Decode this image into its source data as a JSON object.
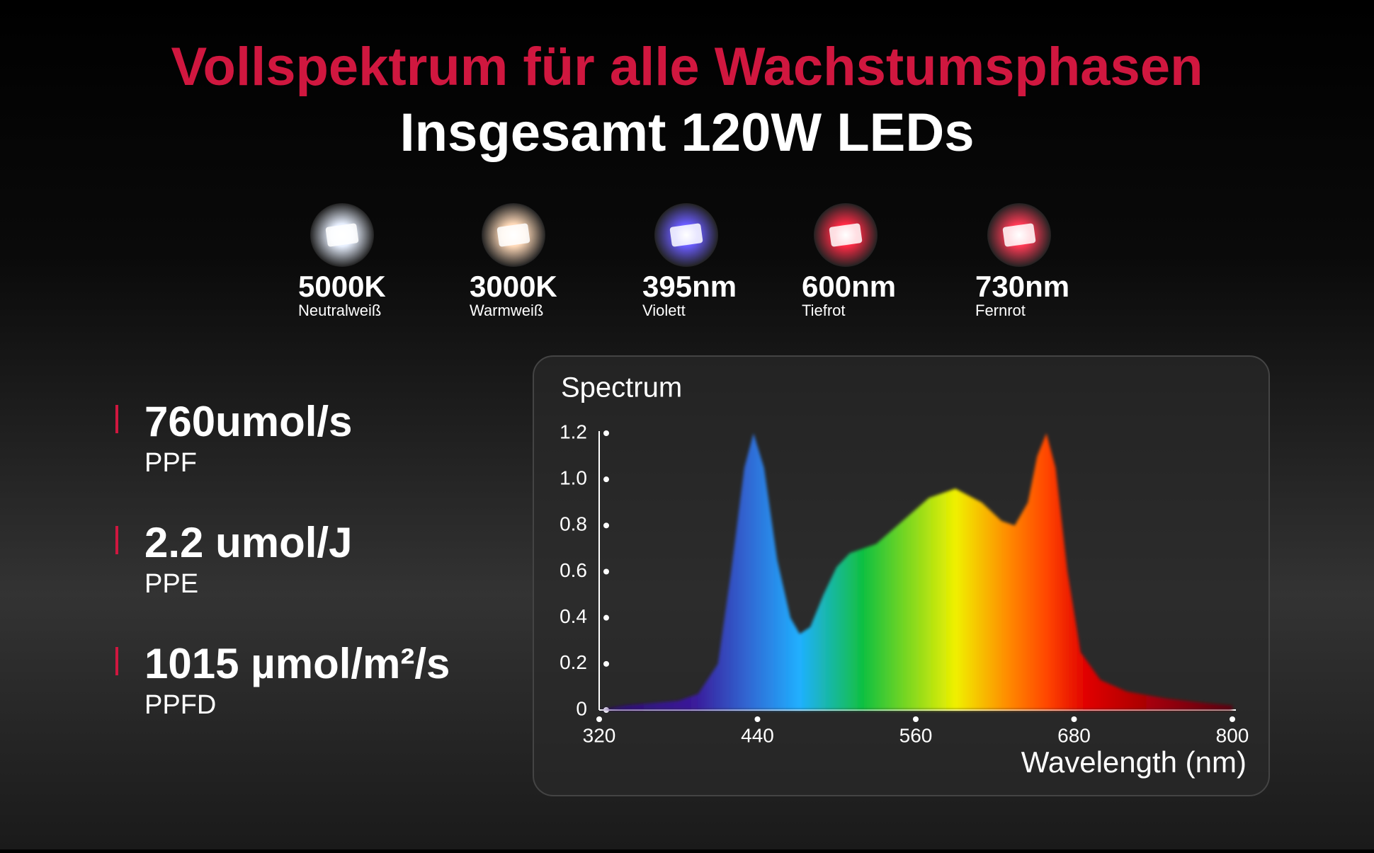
{
  "header": {
    "title": "Vollspektrum für alle Wachstumsphasen",
    "subtitle": "Insgesamt 120W LEDs"
  },
  "leds": [
    {
      "label": "5000K",
      "sublabel": "Neutralweiß",
      "color": "#e8f0ff"
    },
    {
      "label": "3000K",
      "sublabel": "Warmweiß",
      "color": "#ffd9b8"
    },
    {
      "label": "395nm",
      "sublabel": "Violett",
      "color": "#6a5cff"
    },
    {
      "label": "600nm",
      "sublabel": "Tiefrot",
      "color": "#ff2a45"
    },
    {
      "label": "730nm",
      "sublabel": "Fernrot",
      "color": "#ff3a55"
    }
  ],
  "stats": [
    {
      "value": "760umol/s",
      "label": "PPF"
    },
    {
      "value": "2.2 umol/J",
      "label": "PPE"
    },
    {
      "value": "1015 µmol/m²/s",
      "label": "PPFD"
    }
  ],
  "chart_data": {
    "type": "area",
    "title": "Spectrum",
    "x_label": "Wavelength (nm)",
    "x": [
      320,
      340,
      360,
      380,
      395,
      410,
      420,
      430,
      437,
      445,
      455,
      465,
      472,
      480,
      490,
      500,
      510,
      530,
      550,
      570,
      590,
      610,
      625,
      635,
      645,
      652,
      659,
      666,
      675,
      685,
      700,
      720,
      750,
      780,
      800
    ],
    "values": [
      0,
      0.02,
      0.03,
      0.04,
      0.07,
      0.2,
      0.6,
      1.05,
      1.2,
      1.05,
      0.65,
      0.4,
      0.33,
      0.36,
      0.5,
      0.62,
      0.68,
      0.72,
      0.82,
      0.92,
      0.96,
      0.9,
      0.82,
      0.8,
      0.9,
      1.1,
      1.2,
      1.05,
      0.6,
      0.25,
      0.13,
      0.08,
      0.05,
      0.03,
      0.02
    ],
    "xlim": [
      320,
      800
    ],
    "xticks": [
      320,
      440,
      560,
      680,
      800
    ],
    "ylim": [
      0,
      1.2
    ],
    "yticks": [
      0,
      0.2,
      0.4,
      0.6,
      0.8,
      {
        "value": 1,
        "label": "1.0"
      },
      1.2
    ]
  }
}
